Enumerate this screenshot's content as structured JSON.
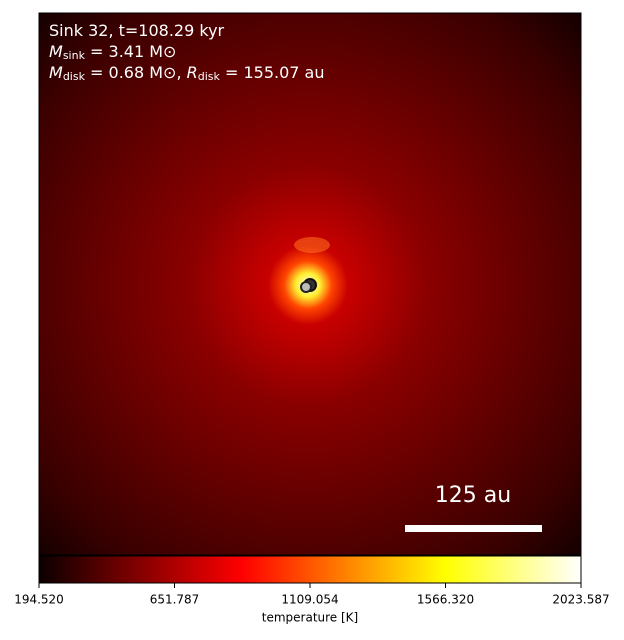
{
  "chart_data": {
    "type": "image",
    "annotation_lines": [
      {
        "text": "Sink 32, t=108.29 kyr"
      },
      {
        "symbol": "M",
        "subscript": "sink",
        "text": " = 3.41 M⊙"
      },
      {
        "symbol": "M",
        "subscript": "disk",
        "text": " = 0.68 M⊙, ",
        "symbol2": "R",
        "subscript2": "disk",
        "text2": " = 155.07 au"
      }
    ],
    "scale_bar": "125 au",
    "colorbar": {
      "label": "temperature [K]",
      "lim": [
        194.52,
        2023.587
      ],
      "ticks": [
        {
          "value": 194.52,
          "label": "194.520"
        },
        651.787,
        1109.054,
        {
          "value": 1566.32,
          "label": "1566.320"
        },
        2023.587
      ]
    }
  }
}
